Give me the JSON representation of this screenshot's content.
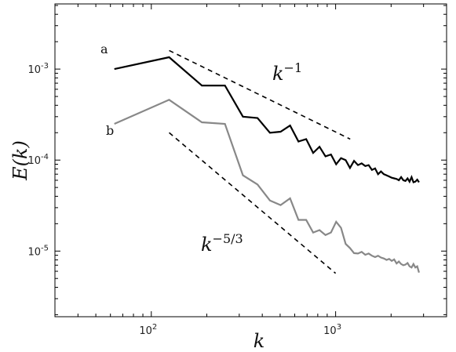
{
  "chart_data": {
    "type": "line",
    "title": "",
    "xlabel": "k",
    "ylabel": "E(k)",
    "xscale": "log",
    "yscale": "log",
    "xlim": [
      30,
      4000
    ],
    "ylim": [
      1.9e-06,
      0.0052
    ],
    "grid": false,
    "x_ticks": [
      {
        "value": 100,
        "base": "10",
        "exp": "2"
      },
      {
        "value": 1000,
        "base": "10",
        "exp": "3"
      }
    ],
    "y_ticks": [
      {
        "value": 1e-05,
        "base": "10",
        "exp": "-5"
      },
      {
        "value": 0.0001,
        "base": "10",
        "exp": "-4"
      },
      {
        "value": 0.001,
        "base": "10",
        "exp": "-3"
      }
    ],
    "series": [
      {
        "name": "a",
        "color": "#000000",
        "x": [
          63,
          125,
          188,
          251,
          314,
          377,
          440,
          503,
          566,
          629,
          692,
          755,
          818,
          881,
          944,
          1007,
          1070,
          1133,
          1196,
          1259,
          1322,
          1385,
          1448,
          1511,
          1574,
          1637,
          1700,
          1763,
          1826,
          1889,
          1952,
          2015,
          2078,
          2141,
          2204,
          2267,
          2330,
          2393,
          2456,
          2519,
          2582,
          2645,
          2708,
          2771,
          2834
        ],
        "y": [
          0.001,
          0.00135,
          0.00066,
          0.00066,
          0.0003,
          0.00029,
          0.0002,
          0.000205,
          0.00024,
          0.00016,
          0.00017,
          0.00012,
          0.00014,
          0.00011,
          0.000115,
          9e-05,
          0.000105,
          0.0001,
          8.2e-05,
          9.8e-05,
          8.8e-05,
          9.2e-05,
          8.6e-05,
          8.8e-05,
          7.8e-05,
          8.1e-05,
          7e-05,
          7.5e-05,
          7e-05,
          6.8e-05,
          6.6e-05,
          6.4e-05,
          6.3e-05,
          6.2e-05,
          6e-05,
          6.5e-05,
          6e-05,
          5.9e-05,
          6.3e-05,
          5.8e-05,
          6.5e-05,
          5.7e-05,
          5.8e-05,
          6.1e-05,
          5.7e-05
        ]
      },
      {
        "name": "b",
        "color": "#888888",
        "x": [
          63,
          125,
          188,
          251,
          314,
          377,
          440,
          503,
          566,
          629,
          692,
          755,
          818,
          881,
          944,
          1007,
          1070,
          1133,
          1196,
          1259,
          1322,
          1385,
          1448,
          1511,
          1574,
          1637,
          1700,
          1763,
          1826,
          1889,
          1952,
          2015,
          2078,
          2141,
          2204,
          2267,
          2330,
          2393,
          2456,
          2519,
          2582,
          2645,
          2708,
          2771,
          2834
        ],
        "y": [
          0.00025,
          0.00046,
          0.00026,
          0.00025,
          6.8e-05,
          5.4e-05,
          3.6e-05,
          3.2e-05,
          3.8e-05,
          2.2e-05,
          2.2e-05,
          1.6e-05,
          1.7e-05,
          1.5e-05,
          1.6e-05,
          2.1e-05,
          1.8e-05,
          1.2e-05,
          1.08e-05,
          9.5e-06,
          9.4e-06,
          9.8e-06,
          9.1e-06,
          9.4e-06,
          8.9e-06,
          8.6e-06,
          8.9e-06,
          8.5e-06,
          8.3e-06,
          8e-06,
          8.2e-06,
          7.8e-06,
          8.1e-06,
          7.3e-06,
          7.7e-06,
          7.2e-06,
          7e-06,
          7.1e-06,
          7.4e-06,
          6.8e-06,
          6.6e-06,
          7.2e-06,
          6.6e-06,
          6.8e-06,
          5.8e-06
        ]
      }
    ],
    "reference_lines": [
      {
        "label_base": "k",
        "label_exp": "−1",
        "x": [
          125,
          1200
        ],
        "y": [
          0.0016,
          0.00017
        ]
      },
      {
        "label_base": "k",
        "label_exp": "−5/3",
        "x": [
          125,
          1000
        ],
        "y": [
          0.0002,
          5.7e-06
        ]
      }
    ]
  }
}
